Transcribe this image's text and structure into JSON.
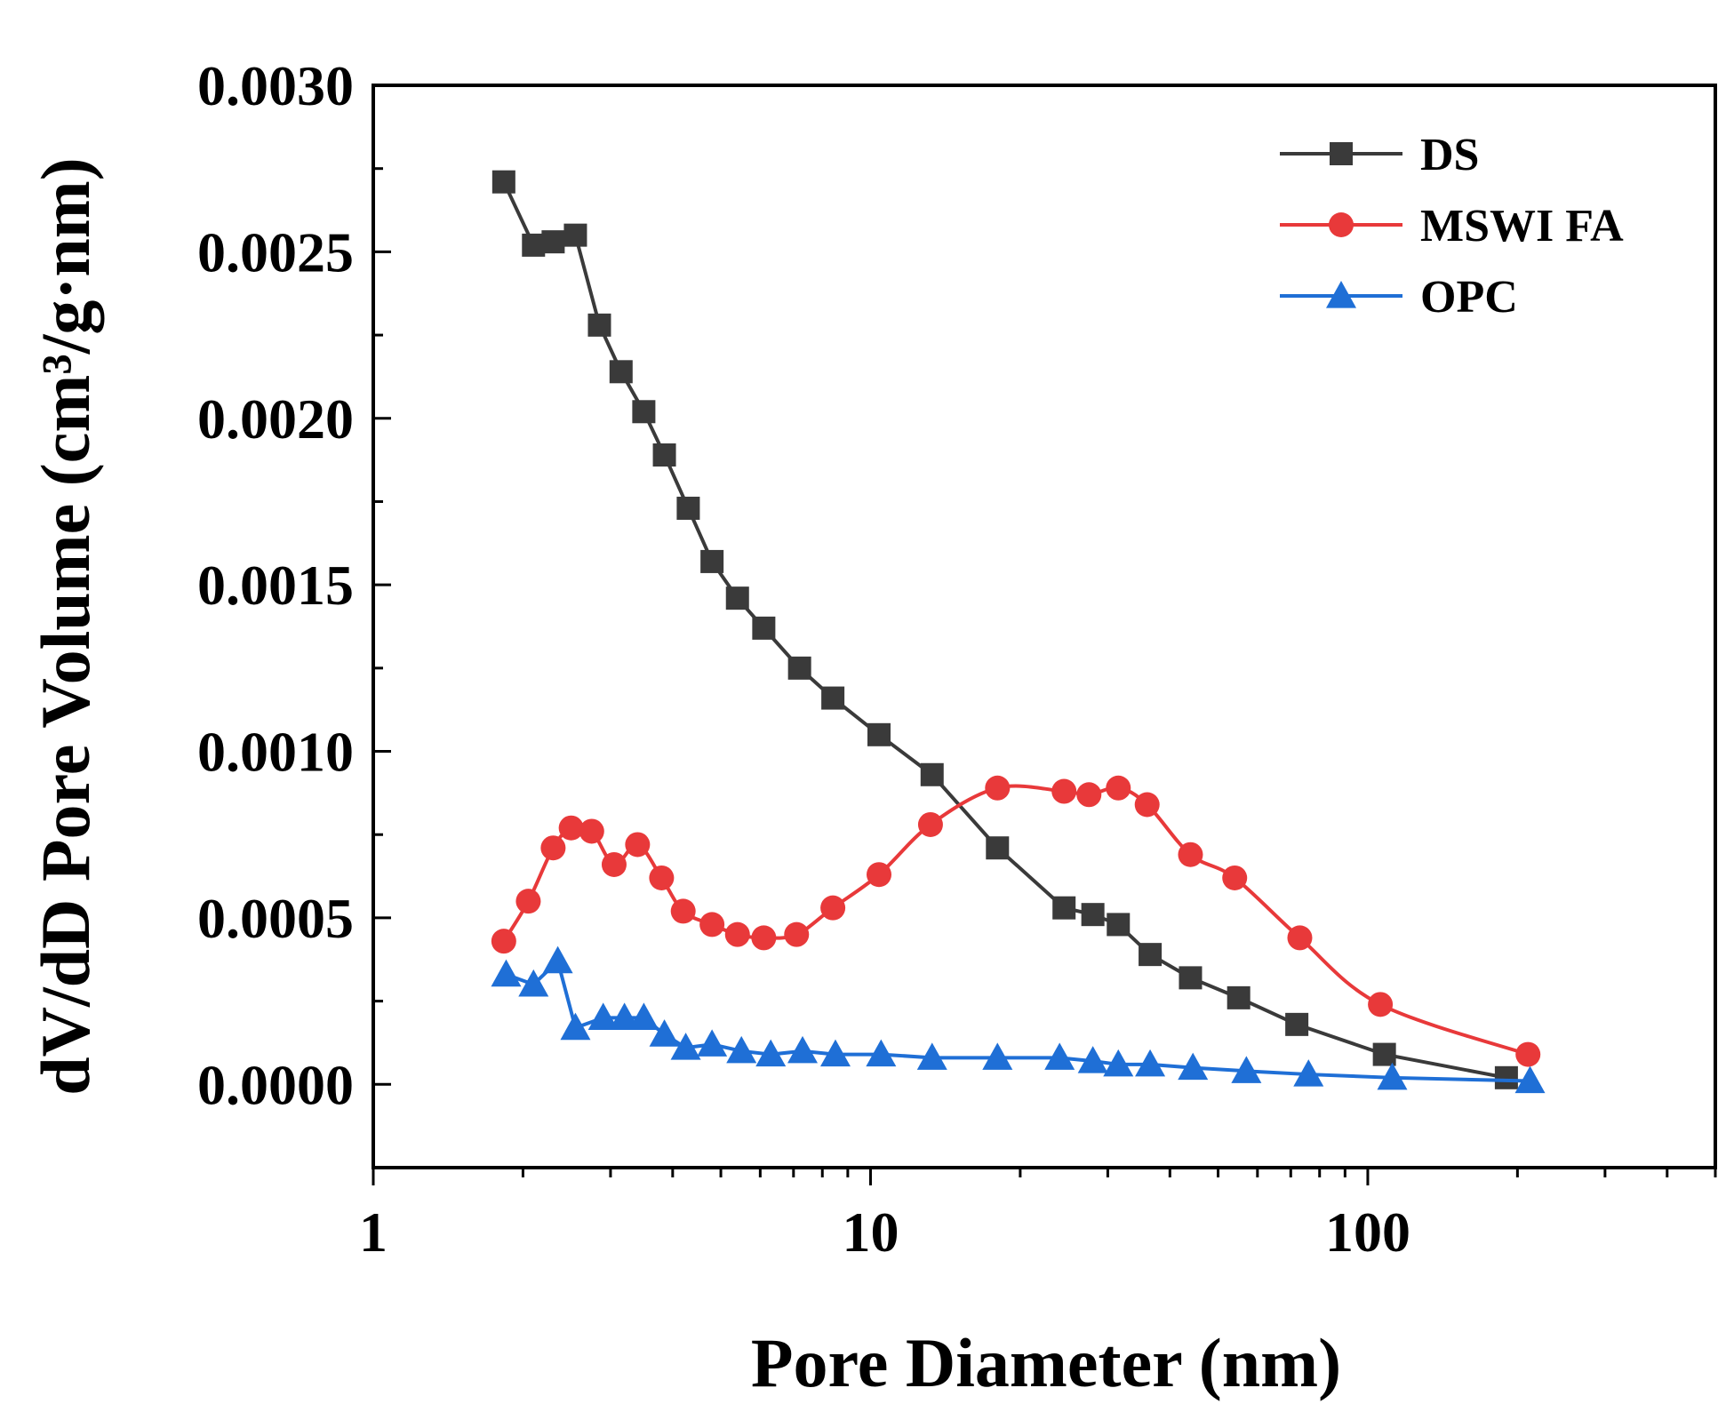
{
  "chart_data": {
    "type": "line",
    "title": "",
    "xlabel": "Pore Diameter (nm)",
    "ylabel": "dV/dD Pore Volume (cm³/g·nm)",
    "x_scale": "log",
    "xlim": [
      1,
      500
    ],
    "ylim": [
      -0.00025,
      0.003
    ],
    "x_ticks": [
      {
        "value": 1,
        "label": "1"
      },
      {
        "value": 10,
        "label": "10"
      },
      {
        "value": 100,
        "label": "100"
      }
    ],
    "y_ticks": [
      {
        "value": 0.0,
        "label": "0.0000"
      },
      {
        "value": 0.0005,
        "label": "0.0005"
      },
      {
        "value": 0.001,
        "label": "0.0010"
      },
      {
        "value": 0.0015,
        "label": "0.0015"
      },
      {
        "value": 0.002,
        "label": "0.0020"
      },
      {
        "value": 0.0025,
        "label": "0.0025"
      },
      {
        "value": 0.003,
        "label": "0.0030"
      }
    ],
    "legend_position": "top-right",
    "series": [
      {
        "name": "DS",
        "color": "#3a3a3a",
        "marker": "square",
        "x": [
          1.83,
          2.1,
          2.3,
          2.55,
          2.85,
          3.15,
          3.5,
          3.85,
          4.3,
          4.8,
          5.4,
          6.1,
          7.2,
          8.4,
          10.4,
          13.3,
          18,
          24.5,
          28,
          31.5,
          36.5,
          44,
          55,
          72,
          108,
          190
        ],
        "y": [
          0.00271,
          0.00252,
          0.00253,
          0.00255,
          0.00228,
          0.00214,
          0.00202,
          0.00189,
          0.00173,
          0.00157,
          0.00146,
          0.00137,
          0.00125,
          0.00116,
          0.00105,
          0.00093,
          0.00071,
          0.00053,
          0.00051,
          0.00048,
          0.00039,
          0.00032,
          0.00026,
          0.00018,
          9e-05,
          2e-05
        ]
      },
      {
        "name": "MSWI FA",
        "color": "#e8393a",
        "marker": "circle",
        "x": [
          1.83,
          2.05,
          2.3,
          2.5,
          2.75,
          3.05,
          3.4,
          3.8,
          4.2,
          4.8,
          5.4,
          6.1,
          7.1,
          8.4,
          10.4,
          13.2,
          18,
          24.5,
          27.5,
          31.5,
          36,
          44,
          54,
          73,
          106,
          210
        ],
        "y": [
          0.00043,
          0.00055,
          0.00071,
          0.00077,
          0.00076,
          0.00066,
          0.00072,
          0.00062,
          0.00052,
          0.00048,
          0.00045,
          0.00044,
          0.00045,
          0.00053,
          0.00063,
          0.00078,
          0.00089,
          0.00088,
          0.00087,
          0.00089,
          0.00084,
          0.00069,
          0.00062,
          0.00044,
          0.00024,
          9e-05
        ]
      },
      {
        "name": "OPC",
        "color": "#1f6fd6",
        "marker": "triangle",
        "x": [
          1.85,
          2.1,
          2.35,
          2.55,
          2.9,
          3.2,
          3.5,
          3.85,
          4.25,
          4.8,
          5.5,
          6.3,
          7.3,
          8.5,
          10.5,
          13.3,
          18,
          24,
          28,
          31.5,
          36.5,
          44.5,
          57,
          76,
          112,
          212
        ],
        "y": [
          0.00033,
          0.0003,
          0.00037,
          0.00017,
          0.0002,
          0.0002,
          0.0002,
          0.00015,
          0.00011,
          0.00012,
          0.0001,
          9e-05,
          0.0001,
          9e-05,
          9e-05,
          8e-05,
          8e-05,
          8e-05,
          7e-05,
          6e-05,
          6e-05,
          5e-05,
          4e-05,
          3e-05,
          2e-05,
          1e-05
        ]
      }
    ]
  }
}
